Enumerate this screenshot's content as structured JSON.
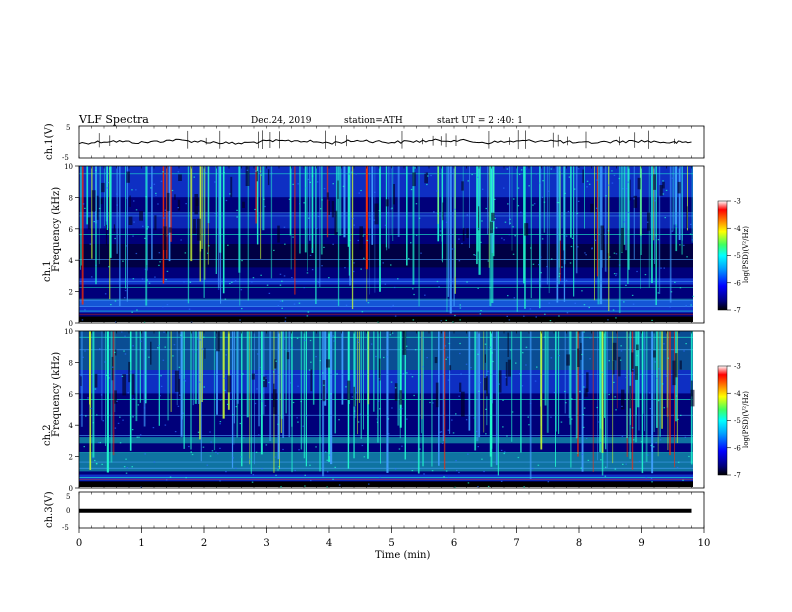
{
  "header": {
    "title": "VLF  Spectra",
    "date": "Dec.24, 2019",
    "station": "station=ATH",
    "start": "start  UT  =   2  :40: 1"
  },
  "colors": {
    "spectrogram_low": "#00007a",
    "spectrogram_mid": "#1a55ff",
    "spectrogram_high": "#22ffd0",
    "spectrogram_peak": "#ff2a00",
    "colormap": [
      "#000000",
      "#00007a",
      "#0000ff",
      "#00a0ff",
      "#00ffff",
      "#40ff60",
      "#ffff00",
      "#ff8000",
      "#ff0000",
      "#ffffff"
    ]
  },
  "chart_data": [
    {
      "type": "line",
      "name": "ch.1 waveform",
      "ylabel": "ch.1(V)",
      "ylim": [
        -5,
        5
      ],
      "yticks": [
        "5",
        "-5"
      ],
      "x": [
        0,
        0.5,
        1,
        1.5,
        2,
        2.5,
        3,
        3.5,
        4,
        4.5,
        5,
        5.5,
        6,
        6.5,
        7,
        7.5,
        8,
        8.5,
        9,
        9.5,
        9.8
      ],
      "y": [
        -0.4,
        0.3,
        -0.2,
        0.6,
        0.1,
        -0.5,
        0.2,
        0.4,
        -0.3,
        0.5,
        -0.1,
        0.3,
        0.6,
        -0.2,
        0.2,
        0.5,
        -0.4,
        0.1,
        0.3,
        -0.2,
        0.0
      ]
    },
    {
      "type": "heatmap",
      "name": "ch.1 spectrogram",
      "ylabel": "ch.1\nFrequency (kHz)",
      "ylim": [
        0,
        10
      ],
      "yticks": [
        "0",
        "2",
        "4",
        "6",
        "8",
        "10"
      ],
      "colorbar": {
        "label": "log(PSD)(V²/Hz)",
        "ticks": [
          "-3",
          "-4",
          "-5",
          "-6",
          "-7"
        ],
        "range": [
          -7,
          -3
        ]
      }
    },
    {
      "type": "heatmap",
      "name": "ch.2 spectrogram",
      "ylabel": "ch.2\nFrequency (kHz)",
      "ylim": [
        0,
        10
      ],
      "yticks": [
        "0",
        "2",
        "4",
        "6",
        "8",
        "10"
      ],
      "colorbar": {
        "label": "log(PSD)(V²/Hz)",
        "ticks": [
          "-3",
          "-4",
          "-5",
          "-6",
          "-7"
        ],
        "range": [
          -7,
          -3
        ]
      }
    },
    {
      "type": "line",
      "name": "ch.3 waveform",
      "ylabel": "ch.3(V)",
      "ylim": [
        -5,
        5
      ],
      "yticks": [
        "5",
        "0",
        "-5"
      ],
      "x": [
        0,
        9.8
      ],
      "y": [
        -0.2,
        -0.2
      ]
    }
  ],
  "axes": {
    "xlabel": "Time  (min)",
    "xlim": [
      0,
      10
    ],
    "xticks": [
      "0",
      "1",
      "2",
      "3",
      "4",
      "5",
      "6",
      "7",
      "8",
      "9",
      "10"
    ]
  },
  "labels": {
    "ch1_wave": "ch.1(V)",
    "ch1_spec_a": "ch.1",
    "ch1_spec_b": "Frequency (kHz)",
    "ch2_spec_a": "ch.2",
    "ch2_spec_b": "Frequency (kHz)",
    "ch3_wave": "ch.3(V)",
    "cb_label": "log(PSD)(V²/Hz)"
  }
}
